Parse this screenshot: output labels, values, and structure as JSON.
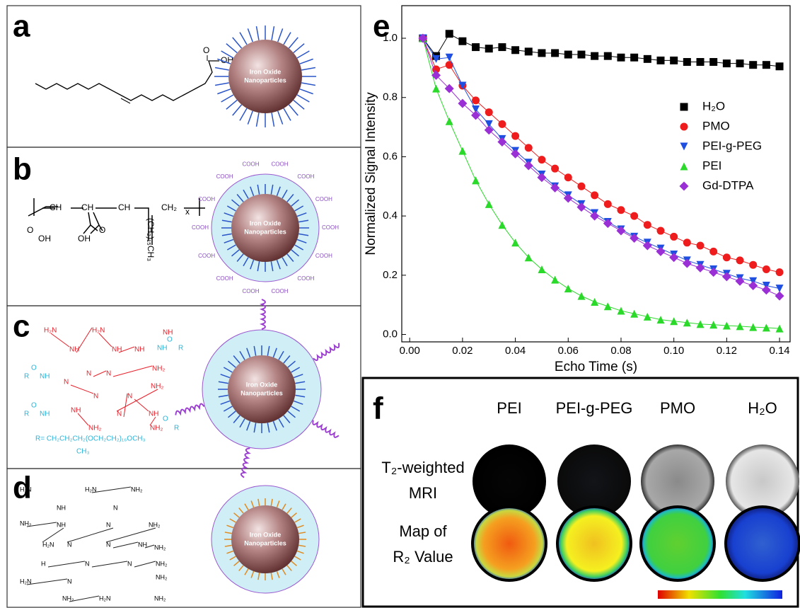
{
  "panels": {
    "a": {
      "label": "a",
      "acid": [
        "O",
        "OH"
      ],
      "particle": [
        "Iron Oxide",
        "Nanoparticles"
      ]
    },
    "b": {
      "label": "b",
      "groups": [
        "CH",
        "CH",
        "CH",
        "CH₂",
        "x",
        "O",
        "OH",
        "OH",
        "O"
      ],
      "side": "(CH₂)₁₅CH₃",
      "shell": "COOH",
      "particle": [
        "Iron Oxide",
        "Nanoparticles"
      ]
    },
    "c": {
      "label": "c",
      "amines": [
        "H₂N",
        "NH",
        "H₂N",
        "NH",
        "NH",
        "N",
        "N",
        "NH₂",
        "N",
        "N",
        "NH₂",
        "N",
        "N",
        "NH",
        "NH₂",
        "NH",
        "NH₂",
        "NH"
      ],
      "amide": [
        "O",
        "R",
        "NH",
        "O",
        "R",
        "NH",
        "O",
        "R",
        "NH",
        "O",
        "R"
      ],
      "r_def": "R= CH₂CH₂CH₂(OCH₂CH₂)₁₆OCH₃",
      "r_sub": "CH₃",
      "particle": [
        "Iron Oxide",
        "Nanoparticles"
      ]
    },
    "d": {
      "label": "d",
      "amines": [
        "H₂N",
        "H₂N",
        "NH₂",
        "NH",
        "N",
        "NH₂",
        "NH",
        "H₂N",
        "N",
        "N",
        "NH₂",
        "N",
        "NH",
        "NH₂",
        "H",
        "N",
        "N",
        "NH₂",
        "H₂N",
        "N",
        "NH₂",
        "NH₂",
        "H₂N",
        "NH₂"
      ],
      "particle": [
        "Iron Oxide",
        "Nanoparticles"
      ]
    },
    "f": {
      "label": "f",
      "columns": [
        "PEI",
        "PEI-g-PEG",
        "PMO",
        "H₂O"
      ],
      "rows": [
        [
          "T₂-weighted",
          "MRI"
        ],
        [
          "Map of",
          "R₂ Value"
        ]
      ]
    }
  },
  "chart_data": {
    "type": "scatter",
    "label": "e",
    "fit_lines": true,
    "x_label": "Echo Time (s)",
    "y_label": "Normalized Signal Intensity",
    "x": [
      0.005,
      0.01,
      0.015,
      0.02,
      0.025,
      0.03,
      0.035,
      0.04,
      0.045,
      0.05,
      0.055,
      0.06,
      0.065,
      0.07,
      0.075,
      0.08,
      0.085,
      0.09,
      0.095,
      0.1,
      0.105,
      0.11,
      0.115,
      0.12,
      0.125,
      0.13,
      0.135,
      0.14
    ],
    "xlim": [
      -0.003,
      0.144
    ],
    "xticks": [
      {
        "value": 0,
        "label": "0.00"
      },
      {
        "value": 0.02,
        "label": "0.02"
      },
      {
        "value": 0.04,
        "label": "0.04"
      },
      {
        "value": 0.06,
        "label": "0.06"
      },
      {
        "value": 0.08,
        "label": "0.08"
      },
      {
        "value": 0.1,
        "label": "0.10"
      },
      {
        "value": 0.12,
        "label": "0.12"
      },
      {
        "value": 0.14,
        "label": "0.14"
      }
    ],
    "ylim": [
      -0.025,
      1.11
    ],
    "yticks": [
      {
        "value": 0,
        "label": "0.0"
      },
      0.2,
      0.4,
      0.6,
      0.8,
      {
        "value": 1,
        "label": "1.0"
      }
    ],
    "series": [
      {
        "name": "H₂O",
        "color": "#000000",
        "marker": "square",
        "values": [
          1.0,
          0.94,
          1.015,
          0.99,
          0.97,
          0.965,
          0.97,
          0.96,
          0.955,
          0.95,
          0.95,
          0.945,
          0.945,
          0.94,
          0.94,
          0.935,
          0.935,
          0.93,
          0.925,
          0.925,
          0.92,
          0.92,
          0.92,
          0.915,
          0.915,
          0.91,
          0.91,
          0.905
        ]
      },
      {
        "name": "PMO",
        "color": "#ee1c1c",
        "marker": "circle",
        "values": [
          1.0,
          0.895,
          0.91,
          0.84,
          0.79,
          0.75,
          0.71,
          0.67,
          0.63,
          0.59,
          0.56,
          0.53,
          0.5,
          0.47,
          0.44,
          0.42,
          0.4,
          0.37,
          0.35,
          0.33,
          0.31,
          0.3,
          0.28,
          0.26,
          0.25,
          0.235,
          0.22,
          0.21
        ]
      },
      {
        "name": "PEI-g-PEG",
        "color": "#1f4fe0",
        "marker": "triangle-down",
        "values": [
          1.0,
          0.93,
          0.935,
          0.84,
          0.76,
          0.71,
          0.66,
          0.62,
          0.58,
          0.54,
          0.5,
          0.47,
          0.44,
          0.41,
          0.38,
          0.355,
          0.33,
          0.31,
          0.29,
          0.27,
          0.25,
          0.235,
          0.22,
          0.205,
          0.19,
          0.18,
          0.165,
          0.155
        ]
      },
      {
        "name": "PEI",
        "color": "#2bd92b",
        "marker": "triangle-up",
        "values": [
          1.0,
          0.83,
          0.72,
          0.62,
          0.52,
          0.44,
          0.37,
          0.31,
          0.26,
          0.22,
          0.185,
          0.155,
          0.13,
          0.11,
          0.095,
          0.08,
          0.07,
          0.06,
          0.05,
          0.045,
          0.04,
          0.035,
          0.033,
          0.03,
          0.028,
          0.025,
          0.023,
          0.02
        ]
      },
      {
        "name": "Gd-DTPA",
        "color": "#9a2fd6",
        "marker": "diamond",
        "values": [
          1.0,
          0.875,
          0.83,
          0.78,
          0.74,
          0.69,
          0.65,
          0.61,
          0.57,
          0.53,
          0.495,
          0.46,
          0.43,
          0.4,
          0.375,
          0.35,
          0.325,
          0.3,
          0.28,
          0.26,
          0.24,
          0.225,
          0.21,
          0.195,
          0.18,
          0.165,
          0.15,
          0.13
        ]
      }
    ]
  }
}
